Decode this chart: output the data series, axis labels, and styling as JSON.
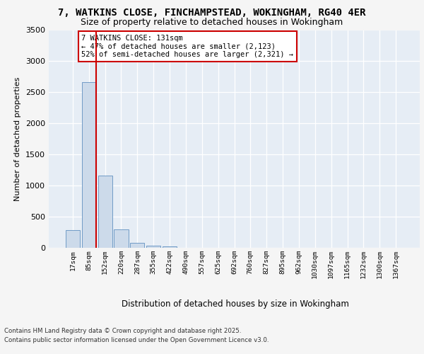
{
  "title_line1": "7, WATKINS CLOSE, FINCHAMPSTEAD, WOKINGHAM, RG40 4ER",
  "title_line2": "Size of property relative to detached houses in Wokingham",
  "xlabel": "Distribution of detached houses by size in Wokingham",
  "ylabel": "Number of detached properties",
  "categories": [
    "17sqm",
    "85sqm",
    "152sqm",
    "220sqm",
    "287sqm",
    "355sqm",
    "422sqm",
    "490sqm",
    "557sqm",
    "625sqm",
    "692sqm",
    "760sqm",
    "827sqm",
    "895sqm",
    "962sqm",
    "1030sqm",
    "1097sqm",
    "1165sqm",
    "1232sqm",
    "1300sqm",
    "1367sqm"
  ],
  "values": [
    280,
    2660,
    1160,
    295,
    85,
    38,
    18,
    0,
    0,
    0,
    0,
    0,
    0,
    0,
    0,
    0,
    0,
    0,
    0,
    0,
    0
  ],
  "bar_color": "#ccdaea",
  "bar_edge_color": "#6090c0",
  "redline_x": 1.43,
  "annotation_text": "7 WATKINS CLOSE: 131sqm\n← 47% of detached houses are smaller (2,123)\n52% of semi-detached houses are larger (2,321) →",
  "annotation_box_facecolor": "#ffffff",
  "annotation_box_edgecolor": "#cc0000",
  "ylim": [
    0,
    3500
  ],
  "yticks": [
    0,
    500,
    1000,
    1500,
    2000,
    2500,
    3000,
    3500
  ],
  "plot_bg_color": "#e6edf5",
  "fig_bg_color": "#f5f5f5",
  "footer_line1": "Contains HM Land Registry data © Crown copyright and database right 2025.",
  "footer_line2": "Contains public sector information licensed under the Open Government Licence v3.0."
}
